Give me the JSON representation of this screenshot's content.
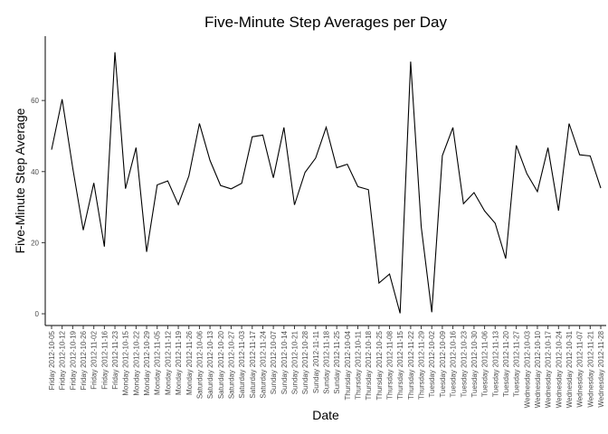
{
  "chart_data": {
    "type": "line",
    "title": "Five-Minute Step Averages per Day",
    "x_label": "Date",
    "y_label": "Five-Minute Step Average",
    "categories": [
      "Friday 2012-10-05",
      "Friday 2012-10-12",
      "Friday 2012-10-19",
      "Friday 2012-10-26",
      "Friday 2012-11-02",
      "Friday 2012-11-16",
      "Friday 2012-11-23",
      "Monday 2012-10-15",
      "Monday 2012-10-22",
      "Monday 2012-10-29",
      "Monday 2012-11-05",
      "Monday 2012-11-12",
      "Monday 2012-11-19",
      "Monday 2012-11-26",
      "Saturday 2012-10-06",
      "Saturday 2012-10-13",
      "Saturday 2012-10-20",
      "Saturday 2012-10-27",
      "Saturday 2012-11-03",
      "Saturday 2012-11-17",
      "Saturday 2012-11-24",
      "Sunday 2012-10-07",
      "Sunday 2012-10-14",
      "Sunday 2012-10-21",
      "Sunday 2012-10-28",
      "Sunday 2012-11-11",
      "Sunday 2012-11-18",
      "Sunday 2012-11-25",
      "Thursday 2012-10-04",
      "Thursday 2012-10-11",
      "Thursday 2012-10-18",
      "Thursday 2012-10-25",
      "Thursday 2012-11-08",
      "Thursday 2012-11-15",
      "Thursday 2012-11-22",
      "Thursday 2012-11-29",
      "Tuesday 2012-10-02",
      "Tuesday 2012-10-09",
      "Tuesday 2012-10-16",
      "Tuesday 2012-10-23",
      "Tuesday 2012-10-30",
      "Tuesday 2012-11-06",
      "Tuesday 2012-11-13",
      "Tuesday 2012-11-20",
      "Tuesday 2012-11-27",
      "Wednesday 2012-10-03",
      "Wednesday 2012-10-10",
      "Wednesday 2012-10-17",
      "Wednesday 2012-10-24",
      "Wednesday 2012-10-31",
      "Wednesday 2012-11-07",
      "Wednesday 2012-11-21",
      "Wednesday 2012-11-28"
    ],
    "values": [
      46.16,
      60.35,
      41.07,
      23.53,
      36.81,
      18.89,
      73.59,
      35.2,
      46.74,
      17.42,
      36.25,
      37.38,
      30.7,
      38.76,
      53.54,
      43.15,
      36.09,
      35.14,
      36.7,
      49.79,
      50.27,
      38.25,
      52.42,
      30.63,
      39.78,
      43.78,
      52.47,
      41.09,
      42.07,
      35.78,
      34.92,
      8.65,
      11.18,
      0.14,
      70.93,
      24.47,
      0.44,
      44.48,
      52.38,
      30.97,
      34.09,
      28.94,
      25.47,
      15.53,
      47.38,
      39.42,
      34.38,
      46.71,
      29.01,
      53.52,
      44.73,
      44.4,
      35.36
    ],
    "color": "#000000",
    "ylim": [
      -3.3,
      78.1
    ],
    "yticks": [
      0,
      20,
      40,
      60
    ]
  }
}
